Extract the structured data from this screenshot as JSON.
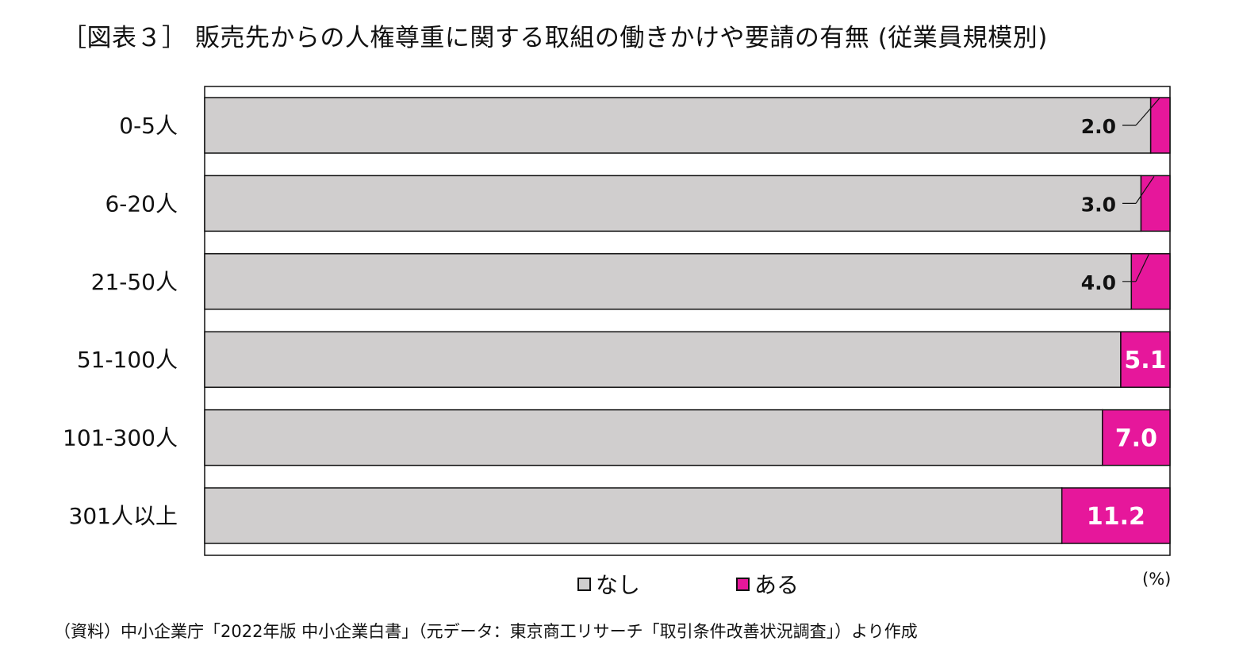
{
  "title": "［図表３］ 販売先からの人権尊重に関する取組の働きかけや要請の有無 (従業員規模別)",
  "unit": "(%)",
  "source": "（資料）中小企業庁「2022年版 中小企業白書」（元データ：東京商工リサーチ「取引条件改善状況調査」）より作成",
  "colors": {
    "none": "#d0cece",
    "yes": "#e6179b",
    "border": "#111111"
  },
  "chart_data": {
    "type": "bar",
    "orientation": "horizontal",
    "stacked": true,
    "categories": [
      "0-5人",
      "6-20人",
      "21-50人",
      "51-100人",
      "101-300人",
      "301人以上"
    ],
    "xlim": [
      0,
      100
    ],
    "series": [
      {
        "name": "なし",
        "values": [
          98.0,
          97.0,
          96.0,
          94.9,
          93.0,
          88.8
        ]
      },
      {
        "name": "ある",
        "values": [
          2.0,
          3.0,
          4.0,
          5.1,
          7.0,
          11.2
        ]
      }
    ],
    "data_labels": [
      "2.0",
      "3.0",
      "4.0",
      "5.1",
      "7.0",
      "11.2"
    ],
    "legend_position": "bottom"
  }
}
